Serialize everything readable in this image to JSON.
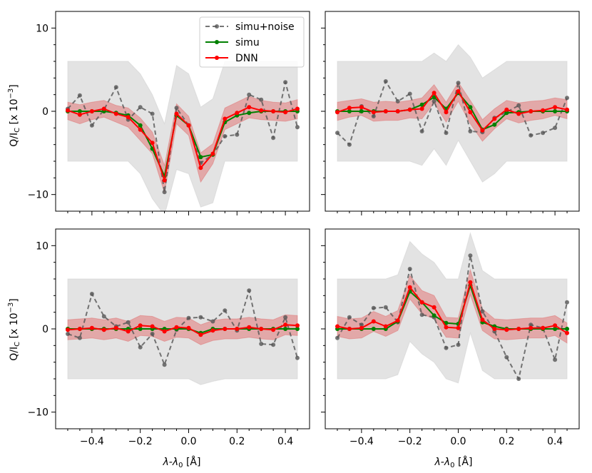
{
  "figure": {
    "ylabel_main": "Q/I",
    "ylabel_sub": "C",
    "ylabel_tail": " [x 10",
    "ylabel_exp": "−3",
    "ylabel_close": "]",
    "xlabel_main": "λ-λ",
    "xlabel_sub": "0",
    "xlabel_unit": " [Å]"
  },
  "legend": {
    "entries": [
      "simu+noise",
      "simu",
      "DNN"
    ]
  },
  "colors": {
    "noise": "#555555",
    "simu": "#008000",
    "dnn": "#ff0000",
    "gray_band": "#cccccc",
    "red_band": "#e06060"
  },
  "chart_data": [
    {
      "type": "line",
      "panel": "top-left",
      "x": [
        -0.5,
        -0.45,
        -0.4,
        -0.35,
        -0.3,
        -0.25,
        -0.2,
        -0.15,
        -0.1,
        -0.05,
        0.0,
        0.05,
        0.1,
        0.15,
        0.2,
        0.25,
        0.3,
        0.35,
        0.4,
        0.45
      ],
      "xlim": [
        -0.55,
        0.5
      ],
      "ylim": [
        -12,
        12
      ],
      "xticks": [
        -0.4,
        -0.2,
        0.0,
        0.2,
        0.4
      ],
      "xtick_labels": [
        "−0.4",
        "−0.2",
        "0.0",
        "0.2",
        "0.4"
      ],
      "yticks": [
        -10,
        0,
        10
      ],
      "ytick_labels": [
        "−10",
        "0",
        "10"
      ],
      "series": [
        {
          "name": "simu+noise",
          "values": [
            0.3,
            1.9,
            -1.7,
            0.2,
            2.9,
            -1.0,
            0.5,
            -0.3,
            -9.7,
            0.4,
            -1.7,
            -6.2,
            -5.2,
            -3.0,
            -2.8,
            2.0,
            1.4,
            -3.2,
            3.5,
            -1.9
          ]
        },
        {
          "name": "simu",
          "values": [
            0.0,
            0.0,
            0.0,
            0.0,
            -0.2,
            -0.5,
            -1.7,
            -4.5,
            -7.8,
            -0.5,
            -1.7,
            -5.5,
            -5.2,
            -1.3,
            -0.5,
            -0.2,
            0.0,
            0.0,
            0.0,
            0.0
          ]
        },
        {
          "name": "DNN",
          "values": [
            0.1,
            -0.4,
            0.0,
            0.3,
            -0.3,
            -0.7,
            -2.2,
            -3.8,
            -8.3,
            -0.3,
            -1.7,
            -6.8,
            -5.1,
            -0.9,
            -0.2,
            0.5,
            0.1,
            0.0,
            -0.1,
            0.3
          ]
        }
      ],
      "gray_band_upper": [
        6,
        6,
        6,
        6,
        6,
        6,
        4.5,
        2,
        -1.5,
        5.5,
        4.5,
        0.5,
        1.5,
        6,
        6,
        6,
        6,
        6,
        6,
        6
      ],
      "gray_band_lower": [
        -6,
        -6,
        -6,
        -6,
        -6,
        -6,
        -7.5,
        -10.5,
        -12.5,
        -7,
        -7.5,
        -11.5,
        -11,
        -6,
        -6,
        -6,
        -6,
        -6,
        -6,
        -6
      ],
      "red_band_upper": [
        1.1,
        0.8,
        1.1,
        1.3,
        0.7,
        0.4,
        -0.8,
        -2.5,
        -6.5,
        0.9,
        -0.6,
        -5.0,
        -3.9,
        0.4,
        1.1,
        1.8,
        1.3,
        1.1,
        1.0,
        1.4
      ],
      "red_band_lower": [
        -1.0,
        -1.5,
        -1.0,
        -0.7,
        -1.3,
        -1.9,
        -3.5,
        -5.1,
        -9.8,
        -1.5,
        -2.9,
        -8.5,
        -6.3,
        -2.2,
        -1.5,
        -0.8,
        -1.0,
        -1.1,
        -1.2,
        -0.9
      ]
    },
    {
      "type": "line",
      "panel": "top-right",
      "x": [
        -0.5,
        -0.45,
        -0.4,
        -0.35,
        -0.3,
        -0.25,
        -0.2,
        -0.15,
        -0.1,
        -0.05,
        0.0,
        0.05,
        0.1,
        0.15,
        0.2,
        0.25,
        0.3,
        0.35,
        0.4,
        0.45
      ],
      "xlim": [
        -0.55,
        0.5
      ],
      "ylim": [
        -12,
        12
      ],
      "xticks": [
        -0.4,
        -0.2,
        0.0,
        0.2,
        0.4
      ],
      "xtick_labels": [
        "−0.4",
        "−0.2",
        "0.0",
        "0.2",
        "0.4"
      ],
      "yticks": [
        -10,
        0,
        10
      ],
      "ytick_labels": [
        "−10",
        "0",
        "10"
      ],
      "series": [
        {
          "name": "simu+noise",
          "values": [
            -2.6,
            -4.0,
            0.6,
            -0.6,
            3.6,
            1.2,
            2.1,
            -2.4,
            1.2,
            -2.6,
            3.4,
            -2.4,
            -2.5,
            -0.8,
            -0.1,
            0.7,
            -2.9,
            -2.6,
            -2.0,
            1.6
          ]
        },
        {
          "name": "simu",
          "values": [
            0.0,
            0.0,
            0.0,
            0.0,
            0.0,
            0.0,
            0.2,
            0.8,
            1.7,
            0.3,
            2.2,
            0.5,
            -2.2,
            -1.6,
            -0.2,
            -0.1,
            0.0,
            0.0,
            0.0,
            0.0
          ]
        },
        {
          "name": "DNN",
          "values": [
            -0.1,
            0.4,
            0.5,
            -0.1,
            0.0,
            0.0,
            0.2,
            0.3,
            2.2,
            -0.1,
            2.4,
            -0.1,
            -2.3,
            -0.9,
            0.2,
            -0.3,
            0.0,
            0.1,
            0.5,
            0.2
          ]
        }
      ],
      "gray_band_upper": [
        6,
        6,
        6,
        6,
        6,
        6,
        6,
        6,
        7,
        6,
        8,
        6.5,
        4,
        5,
        6,
        6,
        6,
        6,
        6,
        6
      ],
      "gray_band_lower": [
        -6,
        -6,
        -6,
        -6,
        -6,
        -6,
        -6,
        -6.5,
        -4.5,
        -6.5,
        -3.5,
        -6,
        -8.5,
        -7.5,
        -6,
        -6,
        -6,
        -6,
        -6,
        -6
      ],
      "red_band_upper": [
        1.1,
        1.3,
        1.5,
        1.1,
        1.2,
        1.1,
        1.3,
        1.6,
        3.2,
        1.1,
        3.5,
        1.3,
        -1.0,
        0.3,
        1.3,
        1.0,
        1.2,
        1.3,
        1.6,
        1.4
      ],
      "red_band_lower": [
        -1.1,
        -0.7,
        -0.5,
        -1.2,
        -1.1,
        -1.1,
        -0.8,
        -0.9,
        1.0,
        -1.3,
        1.2,
        -1.5,
        -3.6,
        -2.1,
        -0.9,
        -1.4,
        -1.1,
        -0.9,
        -0.5,
        -0.9
      ]
    },
    {
      "type": "line",
      "panel": "bottom-left",
      "x": [
        -0.5,
        -0.45,
        -0.4,
        -0.35,
        -0.3,
        -0.25,
        -0.2,
        -0.15,
        -0.1,
        -0.05,
        0.0,
        0.05,
        0.1,
        0.15,
        0.2,
        0.25,
        0.3,
        0.35,
        0.4,
        0.45
      ],
      "xlim": [
        -0.55,
        0.5
      ],
      "ylim": [
        -12,
        12
      ],
      "xticks": [
        -0.4,
        -0.2,
        0.0,
        0.2,
        0.4
      ],
      "xtick_labels": [
        "−0.4",
        "−0.2",
        "0.0",
        "0.2",
        "0.4"
      ],
      "yticks": [
        -10,
        0,
        10
      ],
      "ytick_labels": [
        "−10",
        "0",
        "10"
      ],
      "series": [
        {
          "name": "simu+noise",
          "values": [
            -0.6,
            -1.1,
            4.2,
            1.5,
            0.3,
            0.8,
            -2.2,
            -0.6,
            -4.3,
            -0.1,
            1.3,
            1.4,
            0.9,
            2.2,
            -0.2,
            4.6,
            -1.8,
            -1.9,
            1.4,
            -3.5
          ]
        },
        {
          "name": "simu",
          "values": [
            0.0,
            0.0,
            0.0,
            0.0,
            0.0,
            0.0,
            0.0,
            0.0,
            0.0,
            0.0,
            0.0,
            -0.5,
            0.0,
            0.0,
            0.0,
            0.0,
            0.0,
            0.0,
            0.0,
            0.0
          ]
        },
        {
          "name": "DNN",
          "values": [
            -0.1,
            0.0,
            0.1,
            -0.1,
            0.1,
            -0.3,
            0.4,
            0.3,
            -0.3,
            0.2,
            0.1,
            -0.7,
            -0.2,
            0.0,
            0.0,
            0.2,
            0.0,
            -0.1,
            0.5,
            0.4
          ]
        }
      ],
      "gray_band_upper": [
        6,
        6,
        6,
        6,
        6,
        6,
        6,
        6,
        6,
        6,
        6,
        6,
        6,
        6,
        6,
        6,
        6,
        6,
        6,
        6
      ],
      "gray_band_lower": [
        -6,
        -6,
        -6,
        -6,
        -6,
        -6,
        -6,
        -6,
        -6,
        -6,
        -6,
        -6.7,
        -6.3,
        -6,
        -6,
        -6,
        -6,
        -6,
        -6,
        -6
      ],
      "red_band_upper": [
        1.1,
        1.2,
        1.3,
        1.1,
        1.3,
        0.9,
        1.6,
        1.5,
        0.9,
        1.4,
        1.3,
        0.5,
        1.0,
        1.2,
        1.2,
        1.4,
        1.2,
        1.1,
        1.7,
        1.6
      ],
      "red_band_lower": [
        -1.3,
        -1.2,
        -1.1,
        -1.3,
        -1.1,
        -1.5,
        -0.8,
        -0.9,
        -1.5,
        -1.0,
        -1.1,
        -1.9,
        -1.4,
        -1.2,
        -1.2,
        -1.0,
        -1.2,
        -1.3,
        -0.7,
        -0.8
      ]
    },
    {
      "type": "line",
      "panel": "bottom-right",
      "x": [
        -0.5,
        -0.45,
        -0.4,
        -0.35,
        -0.3,
        -0.25,
        -0.2,
        -0.15,
        -0.1,
        -0.05,
        0.0,
        0.05,
        0.1,
        0.15,
        0.2,
        0.25,
        0.3,
        0.35,
        0.4,
        0.45
      ],
      "xlim": [
        -0.55,
        0.5
      ],
      "ylim": [
        -12,
        12
      ],
      "xticks": [
        -0.4,
        -0.2,
        0.0,
        0.2,
        0.4
      ],
      "xtick_labels": [
        "−0.4",
        "−0.2",
        "0.0",
        "0.2",
        "0.4"
      ],
      "yticks": [
        -10,
        0,
        10
      ],
      "ytick_labels": [
        "−10",
        "0",
        "10"
      ],
      "series": [
        {
          "name": "simu+noise",
          "values": [
            -1.1,
            1.4,
            0.5,
            2.5,
            2.6,
            0.8,
            7.2,
            1.7,
            1.4,
            -2.3,
            -1.9,
            8.8,
            2.1,
            -0.3,
            -3.4,
            -6.0,
            0.5,
            0.1,
            -3.7,
            3.2
          ]
        },
        {
          "name": "simu",
          "values": [
            0.0,
            0.0,
            0.0,
            0.0,
            0.0,
            0.9,
            4.5,
            3.2,
            1.6,
            0.7,
            0.6,
            5.2,
            0.8,
            0.3,
            0.0,
            0.0,
            0.0,
            0.0,
            0.0,
            0.0
          ]
        },
        {
          "name": "DNN",
          "values": [
            0.3,
            0.0,
            0.1,
            0.9,
            0.3,
            1.0,
            5.0,
            3.2,
            2.6,
            0.2,
            0.1,
            5.6,
            1.1,
            0.0,
            -0.1,
            0.0,
            0.1,
            0.1,
            0.4,
            -0.5
          ]
        }
      ],
      "gray_band_upper": [
        6,
        6,
        6,
        6,
        6,
        6.5,
        10.5,
        9,
        8,
        6,
        6,
        11.5,
        7,
        6,
        6,
        6,
        6,
        6,
        6,
        6
      ],
      "gray_band_lower": [
        -6,
        -6,
        -6,
        -6,
        -6,
        -5.5,
        -1.5,
        -3,
        -4,
        -6,
        -6.5,
        -0.5,
        -5,
        -6,
        -6,
        -6,
        -6,
        -6,
        -6,
        -6
      ],
      "red_band_upper": [
        1.5,
        1.2,
        1.3,
        2.1,
        1.5,
        2.2,
        6.4,
        4.6,
        4.0,
        1.4,
        1.3,
        7.1,
        2.4,
        1.2,
        1.1,
        1.2,
        1.3,
        1.3,
        1.6,
        0.7
      ],
      "red_band_lower": [
        -0.9,
        -1.2,
        -1.1,
        -0.3,
        -0.9,
        -0.2,
        3.6,
        1.8,
        1.2,
        -1.0,
        -1.1,
        4.1,
        -0.2,
        -1.2,
        -1.3,
        -1.2,
        -1.1,
        -1.1,
        -0.8,
        -1.7
      ]
    }
  ]
}
